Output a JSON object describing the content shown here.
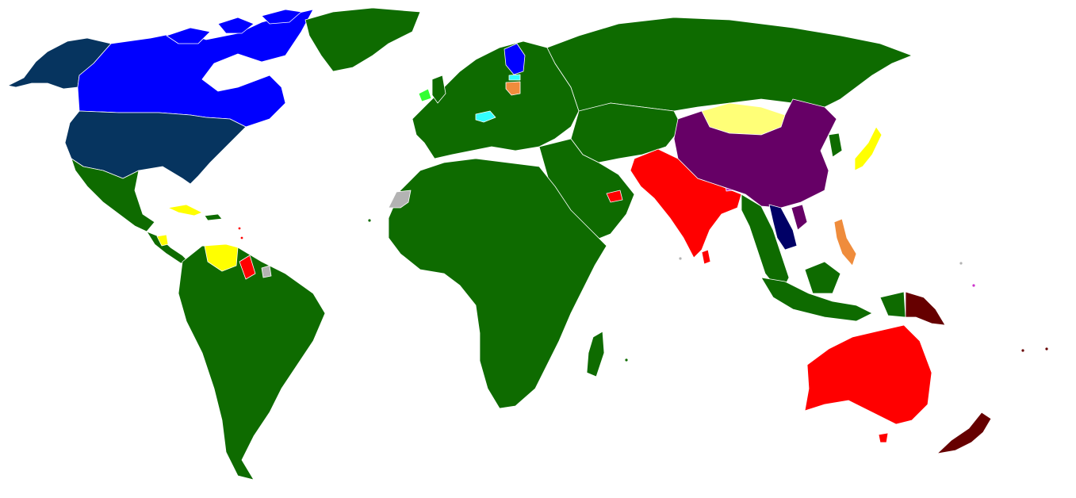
{
  "colors": {
    "background": "#ffffff",
    "default_land": "#0e6b00",
    "usa_greenland_alaska": "#06345f",
    "canada_finland": "#0000ff",
    "china": "#660066",
    "india_australia_guyana_uae": "#ff0000",
    "japan_venezuela_cuba_nicaragua": "#ffff00",
    "mongolia": "#ffff77",
    "philippines_lithuania": "#ef8c3c",
    "hungary_estonia": "#33ffff",
    "ireland": "#33ff33",
    "laos_cambodia": "#000066",
    "papua_new_guinea_new_zealand": "#660000",
    "bhutan_small_islands": "#cc33cc",
    "western_sahara_french_guiana": "#b3b3b3"
  }
}
